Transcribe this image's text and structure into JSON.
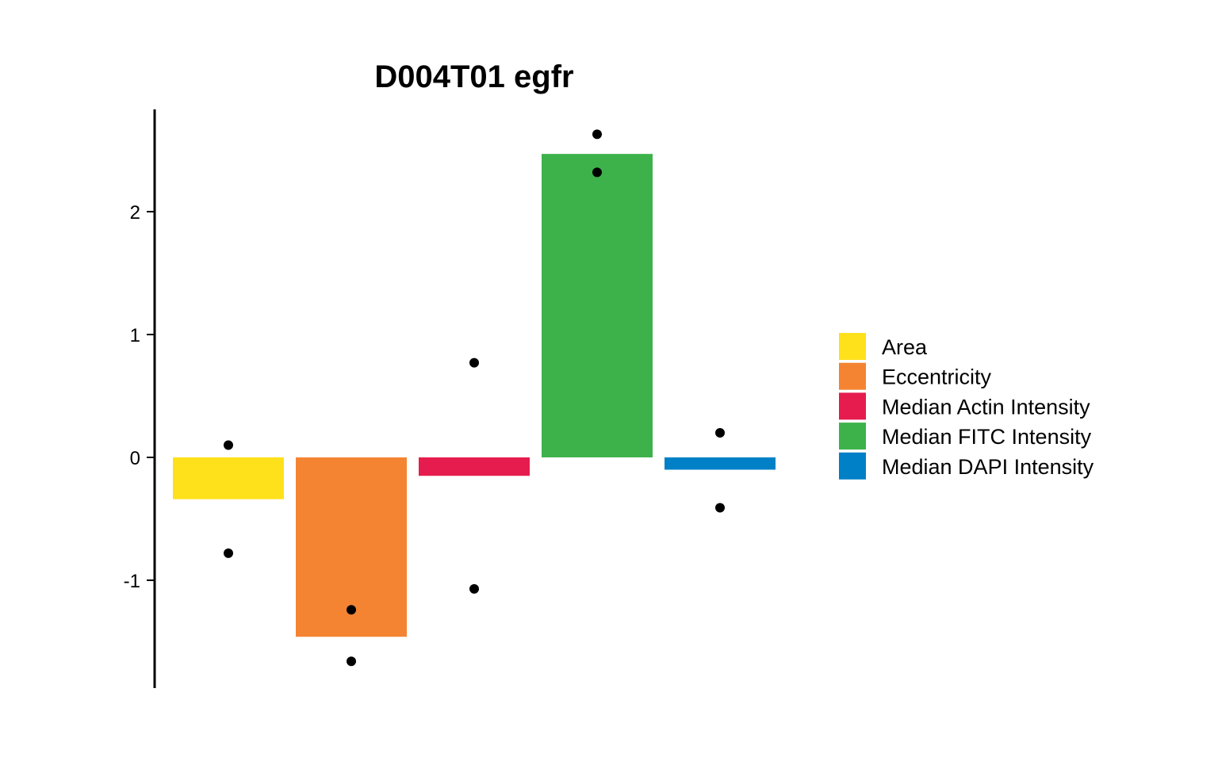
{
  "chart_data": {
    "type": "bar",
    "title": "D004T01 egfr",
    "xlabel": "",
    "ylabel": "",
    "ylim": [
      -1.9,
      2.8
    ],
    "yticks": [
      2,
      1,
      0,
      -1
    ],
    "ytick_labels": [
      "2",
      "1",
      "0",
      "-1"
    ],
    "grid": false,
    "legend_position": "right",
    "categories": [
      "Area",
      "Eccentricity",
      "Median Actin Intensity",
      "Median FITC Intensity",
      "Median DAPI Intensity"
    ],
    "colors": [
      "#FEE11A",
      "#F48432",
      "#E61C4E",
      "#3DB24B",
      "#0080C7"
    ],
    "values": [
      -0.34,
      -1.46,
      -0.15,
      2.47,
      -0.1
    ],
    "points": [
      [
        0.1,
        -0.78
      ],
      [
        -1.24,
        -1.66
      ],
      [
        0.77,
        -1.07
      ],
      [
        2.63,
        2.32
      ],
      [
        0.2,
        -0.41
      ]
    ]
  }
}
